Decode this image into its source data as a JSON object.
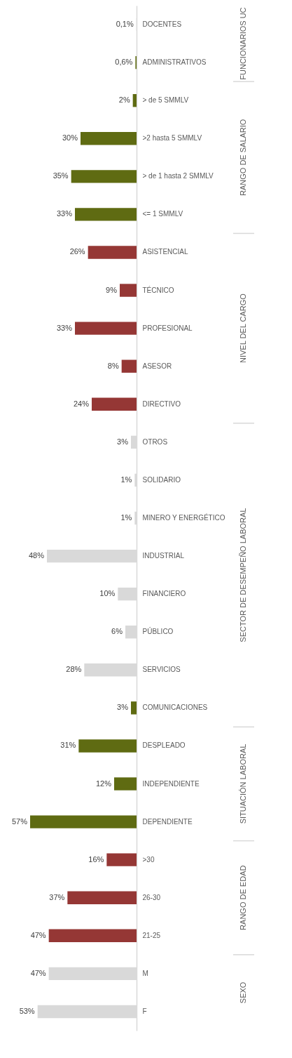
{
  "chart_data": {
    "type": "bar",
    "orientation": "horizontal",
    "categories": [
      "DOCENTES",
      "ADMINISTRATIVOS",
      "> de 5 SMMLV",
      ">2 hasta 5 SMMLV",
      "> de 1 hasta 2 SMMLV",
      "<= 1 SMMLV",
      "ASISTENCIAL",
      "TÉCNICO",
      "PROFESIONAL",
      "ASESOR",
      "DIRECTIVO",
      "OTROS",
      "SOLIDARIO",
      "MINERO Y ENERGÉTICO",
      "INDUSTRIAL",
      "FINANCIERO",
      "PÚBLICO",
      "SERVICIOS",
      "COMUNICACIONES",
      "DESPLEADO",
      "INDEPENDIENTE",
      "DEPENDIENTE",
      ">30",
      "26-30",
      "21-25",
      "M",
      "F"
    ],
    "values": [
      0.1,
      0.6,
      2,
      30,
      35,
      33,
      26,
      9,
      33,
      8,
      24,
      3,
      1,
      1,
      48,
      10,
      6,
      28,
      3,
      31,
      12,
      57,
      16,
      37,
      47,
      47,
      53
    ],
    "value_labels": [
      "0,1%",
      "0,6%",
      "2%",
      "30%",
      "35%",
      "33%",
      "26%",
      "9%",
      "33%",
      "8%",
      "24%",
      "3%",
      "1%",
      "1%",
      "48%",
      "10%",
      "6%",
      "28%",
      "3%",
      "31%",
      "12%",
      "57%",
      "16%",
      "37%",
      "47%",
      "47%",
      "53%"
    ],
    "colors": [
      "#d9d9d9",
      "#5f6b12",
      "#5f6b12",
      "#5f6b12",
      "#5f6b12",
      "#5f6b12",
      "#953735",
      "#953735",
      "#953735",
      "#953735",
      "#953735",
      "#d9d9d9",
      "#d9d9d9",
      "#d9d9d9",
      "#d9d9d9",
      "#d9d9d9",
      "#d9d9d9",
      "#d9d9d9",
      "#5f6b12",
      "#5f6b12",
      "#5f6b12",
      "#5f6b12",
      "#953735",
      "#953735",
      "#953735",
      "#d9d9d9",
      "#d9d9d9"
    ],
    "annotations": [
      "FUNCIONARIOS UC",
      "RANGO DE SALARIO",
      "NIVEL DEL CARGO",
      "SECTOR DE DESEMPEÑO LABORAL",
      "SITUACIÓN LABORAL",
      "RANGO DE EDAD",
      "SEXO"
    ]
  }
}
